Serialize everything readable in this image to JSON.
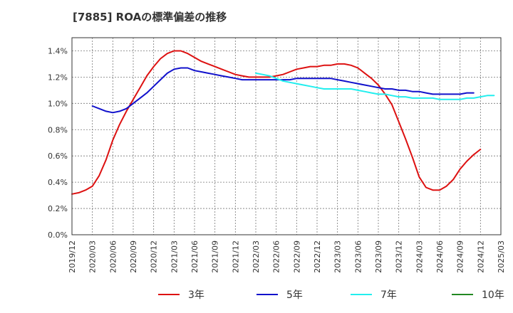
{
  "chart_data": {
    "type": "line",
    "title": "[7885]  ROAの標準偏差の推移",
    "xlabel": "",
    "ylabel": "",
    "x_ticks": [
      "2019/12",
      "2020/03",
      "2020/06",
      "2020/09",
      "2020/12",
      "2021/03",
      "2021/06",
      "2021/09",
      "2021/12",
      "2022/03",
      "2022/06",
      "2022/09",
      "2022/12",
      "2023/03",
      "2023/06",
      "2023/09",
      "2023/12",
      "2024/03",
      "2024/06",
      "2024/09",
      "2024/12",
      "2025/03"
    ],
    "y_ticks": [
      "0.0%",
      "0.2%",
      "0.4%",
      "0.6%",
      "0.8%",
      "1.0%",
      "1.2%",
      "1.4%"
    ],
    "ylim": [
      0,
      1.5
    ],
    "grid": true,
    "legend_position": "bottom",
    "series": [
      {
        "name": "3年",
        "color": "#dd1111",
        "x_start": "2019/12",
        "values": [
          0.31,
          0.32,
          0.34,
          0.37,
          0.45,
          0.57,
          0.72,
          0.84,
          0.94,
          1.03,
          1.12,
          1.21,
          1.28,
          1.34,
          1.38,
          1.4,
          1.4,
          1.38,
          1.35,
          1.32,
          1.3,
          1.28,
          1.26,
          1.24,
          1.22,
          1.21,
          1.2,
          1.2,
          1.2,
          1.2,
          1.21,
          1.22,
          1.24,
          1.26,
          1.27,
          1.28,
          1.28,
          1.29,
          1.29,
          1.3,
          1.3,
          1.29,
          1.27,
          1.23,
          1.19,
          1.14,
          1.07,
          0.99,
          0.86,
          0.73,
          0.59,
          0.44,
          0.36,
          0.34,
          0.34,
          0.37,
          0.42,
          0.5,
          0.56,
          0.61,
          0.65
        ]
      },
      {
        "name": "5年",
        "color": "#1111cc",
        "x_start": "2020/03",
        "values": [
          0.98,
          0.96,
          0.94,
          0.93,
          0.94,
          0.96,
          1.0,
          1.04,
          1.08,
          1.13,
          1.18,
          1.23,
          1.26,
          1.27,
          1.27,
          1.25,
          1.24,
          1.23,
          1.22,
          1.21,
          1.2,
          1.19,
          1.18,
          1.18,
          1.18,
          1.18,
          1.18,
          1.18,
          1.18,
          1.18,
          1.19,
          1.19,
          1.19,
          1.19,
          1.19,
          1.19,
          1.18,
          1.17,
          1.16,
          1.15,
          1.14,
          1.13,
          1.12,
          1.11,
          1.11,
          1.1,
          1.1,
          1.09,
          1.09,
          1.08,
          1.07,
          1.07,
          1.07,
          1.07,
          1.07,
          1.08,
          1.08
        ]
      },
      {
        "name": "7年",
        "color": "#22eeee",
        "x_start": "2022/03",
        "values": [
          1.23,
          1.22,
          1.21,
          1.19,
          1.17,
          1.16,
          1.15,
          1.14,
          1.13,
          1.12,
          1.11,
          1.11,
          1.11,
          1.11,
          1.11,
          1.1,
          1.09,
          1.08,
          1.07,
          1.07,
          1.06,
          1.05,
          1.05,
          1.04,
          1.04,
          1.04,
          1.04,
          1.03,
          1.03,
          1.03,
          1.03,
          1.04,
          1.04,
          1.05,
          1.06,
          1.06
        ]
      },
      {
        "name": "10年",
        "color": "#228822",
        "x_start": "",
        "values": []
      }
    ]
  }
}
